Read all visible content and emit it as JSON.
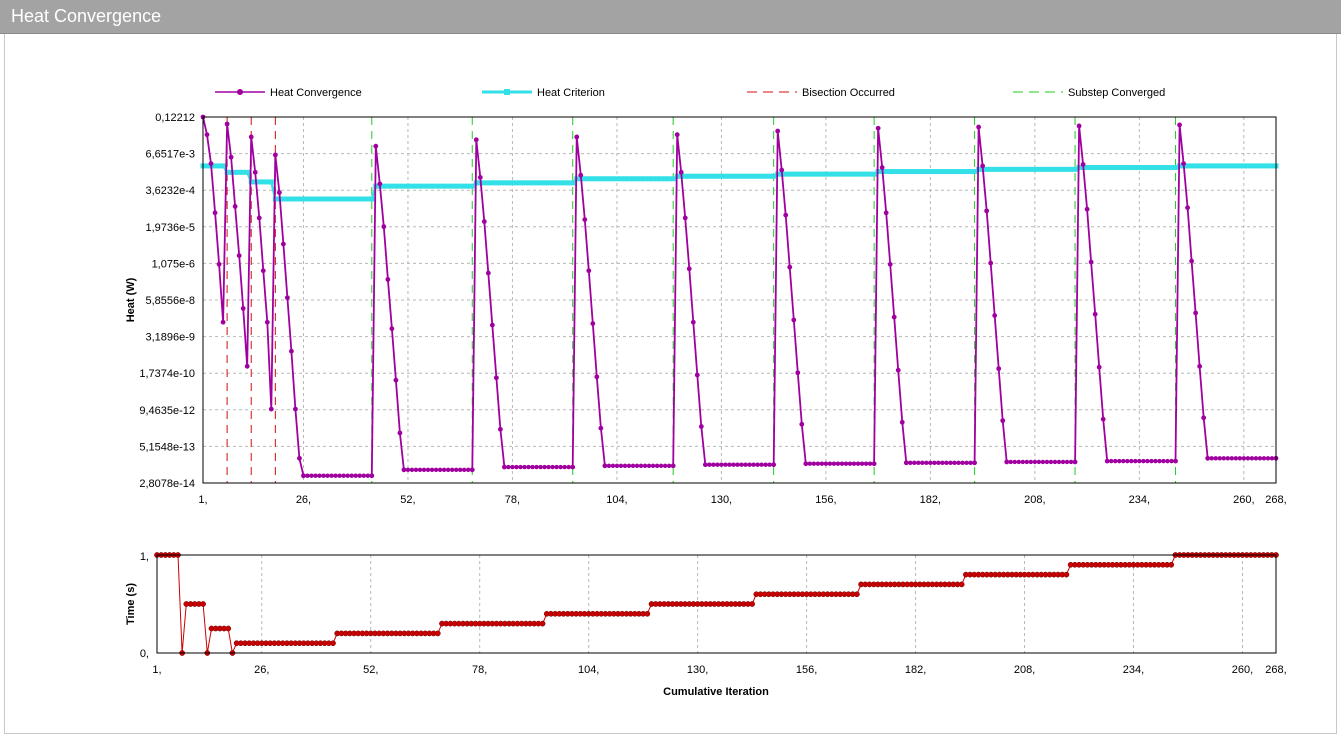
{
  "window": {
    "title": "Heat Convergence"
  },
  "chart_data": [
    {
      "type": "line",
      "xlabel": "",
      "ylabel": "Heat (W)",
      "log_scale_y": true,
      "ylim": [
        2.8078e-14,
        0.12212
      ],
      "xlim": [
        1,
        268
      ],
      "grid": true,
      "legend_position": "top",
      "x_ticks": [
        "1,",
        "26,",
        "52,",
        "78,",
        "104,",
        "130,",
        "156,",
        "182,",
        "208,",
        "234,",
        "260,",
        "268,"
      ],
      "y_ticks": [
        "0,12212",
        "6,6517e-3",
        "3,6232e-4",
        "1,9736e-5",
        "1,075e-6",
        "5,8556e-8",
        "3,1896e-9",
        "1,7374e-10",
        "9,4635e-12",
        "5,1548e-13",
        "2,8078e-14"
      ],
      "legend": [
        {
          "name": "Heat Convergence",
          "color": "#a000a0"
        },
        {
          "name": "Heat Criterion",
          "color": "#33e0e8"
        },
        {
          "name": "Bisection Occurred",
          "color": "#d01010"
        },
        {
          "name": "Substep Converged",
          "color": "#22cc22"
        }
      ],
      "bisection_x": [
        7,
        13,
        19
      ],
      "substep_x": [
        43,
        68,
        93,
        118,
        143,
        168,
        193,
        218,
        243
      ],
      "series": [
        {
          "name": "Heat Convergence",
          "color": "#a000a0",
          "points": [
            [
              1,
              0.12212
            ],
            [
              2,
              0.03
            ],
            [
              3,
              0.003
            ],
            [
              4,
              6e-05
            ],
            [
              5,
              1e-06
            ],
            [
              6,
              1e-08
            ],
            [
              7,
              0.07
            ],
            [
              8,
              0.005
            ],
            [
              9,
              0.0001
            ],
            [
              10,
              2e-06
            ],
            [
              11,
              3e-08
            ],
            [
              12,
              3e-10
            ],
            [
              13,
              0.025
            ],
            [
              14,
              0.0015
            ],
            [
              15,
              4e-05
            ],
            [
              16,
              6e-07
            ],
            [
              17,
              1e-08
            ],
            [
              18,
              1e-11
            ],
            [
              19,
              0.006
            ],
            [
              20,
              0.0003
            ],
            [
              21,
              5e-06
            ],
            [
              22,
              7e-08
            ],
            [
              23,
              1e-09
            ],
            [
              24,
              1e-11
            ],
            [
              25,
              2e-13
            ],
            [
              26,
              5e-14
            ],
            [
              43,
              5e-14
            ],
            [
              44,
              0.012
            ],
            [
              45,
              0.0006
            ],
            [
              46,
              2e-05
            ],
            [
              47,
              3e-07
            ],
            [
              48,
              6e-09
            ],
            [
              49,
              1e-10
            ],
            [
              50,
              1.5e-12
            ],
            [
              51,
              8e-14
            ],
            [
              68,
              8e-14
            ],
            [
              69,
              0.02
            ],
            [
              70,
              0.001
            ],
            [
              71,
              3e-05
            ],
            [
              72,
              5e-07
            ],
            [
              73,
              8e-09
            ],
            [
              74,
              1.2e-10
            ],
            [
              75,
              2e-12
            ],
            [
              76,
              1e-13
            ],
            [
              93,
              1e-13
            ],
            [
              94,
              0.025
            ],
            [
              95,
              0.0012
            ],
            [
              96,
              3.5e-05
            ],
            [
              97,
              6e-07
            ],
            [
              98,
              9e-09
            ],
            [
              99,
              1.3e-10
            ],
            [
              100,
              2.2e-12
            ],
            [
              101,
              1.1e-13
            ],
            [
              118,
              1.1e-13
            ],
            [
              119,
              0.03
            ],
            [
              120,
              0.0015
            ],
            [
              121,
              4e-05
            ],
            [
              122,
              7e-07
            ],
            [
              123,
              1e-08
            ],
            [
              124,
              1.5e-10
            ],
            [
              125,
              2.5e-12
            ],
            [
              126,
              1.2e-13
            ],
            [
              143,
              1.2e-13
            ],
            [
              144,
              0.04
            ],
            [
              145,
              0.0018
            ],
            [
              146,
              5e-05
            ],
            [
              147,
              8e-07
            ],
            [
              148,
              1.2e-08
            ],
            [
              149,
              1.8e-10
            ],
            [
              150,
              3e-12
            ],
            [
              151,
              1.3e-13
            ],
            [
              168,
              1.3e-13
            ],
            [
              169,
              0.05
            ],
            [
              170,
              0.0022
            ],
            [
              171,
              6e-05
            ],
            [
              172,
              1e-06
            ],
            [
              173,
              1.5e-08
            ],
            [
              174,
              2.2e-10
            ],
            [
              175,
              3.5e-12
            ],
            [
              176,
              1.4e-13
            ],
            [
              193,
              1.4e-13
            ],
            [
              194,
              0.055
            ],
            [
              195,
              0.0025
            ],
            [
              196,
              7e-05
            ],
            [
              197,
              1.1e-06
            ],
            [
              198,
              1.7e-08
            ],
            [
              199,
              2.5e-10
            ],
            [
              200,
              4e-12
            ],
            [
              201,
              1.5e-13
            ],
            [
              218,
              1.5e-13
            ],
            [
              219,
              0.06
            ],
            [
              220,
              0.0028
            ],
            [
              221,
              8e-05
            ],
            [
              222,
              1.2e-06
            ],
            [
              223,
              1.9e-08
            ],
            [
              224,
              2.8e-10
            ],
            [
              225,
              4.5e-12
            ],
            [
              226,
              1.6e-13
            ],
            [
              243,
              1.6e-13
            ],
            [
              244,
              0.065
            ],
            [
              245,
              0.003
            ],
            [
              246,
              9e-05
            ],
            [
              247,
              1.3e-06
            ],
            [
              248,
              2.1e-08
            ],
            [
              249,
              3e-10
            ],
            [
              250,
              5e-12
            ],
            [
              251,
              2e-13
            ],
            [
              268,
              2e-13
            ]
          ]
        },
        {
          "name": "Heat Criterion",
          "color": "#33e0e8",
          "points": [
            [
              1,
              0.0025
            ],
            [
              6,
              0.0025
            ],
            [
              7,
              0.0015
            ],
            [
              12,
              0.0015
            ],
            [
              13,
              0.0007
            ],
            [
              18,
              0.0007
            ],
            [
              19,
              0.00018
            ],
            [
              43,
              0.00018
            ],
            [
              44,
              0.0005
            ],
            [
              68,
              0.0005
            ],
            [
              69,
              0.00065
            ],
            [
              93,
              0.00065
            ],
            [
              94,
              0.0009
            ],
            [
              118,
              0.0009
            ],
            [
              119,
              0.0011
            ],
            [
              143,
              0.0011
            ],
            [
              144,
              0.0013
            ],
            [
              168,
              0.0013
            ],
            [
              169,
              0.0016
            ],
            [
              193,
              0.0016
            ],
            [
              194,
              0.0019
            ],
            [
              218,
              0.0019
            ],
            [
              219,
              0.0022
            ],
            [
              243,
              0.0022
            ],
            [
              244,
              0.0025
            ],
            [
              268,
              0.0025
            ]
          ]
        }
      ]
    },
    {
      "type": "line",
      "xlabel": "Cumulative Iteration",
      "ylabel": "Time (s)",
      "ylim": [
        0,
        1
      ],
      "xlim": [
        1,
        268
      ],
      "grid": true,
      "x_ticks": [
        "1,",
        "26,",
        "52,",
        "78,",
        "104,",
        "130,",
        "156,",
        "182,",
        "208,",
        "234,",
        "260,",
        "268,"
      ],
      "y_ticks": [
        "1,",
        "0,"
      ],
      "series": [
        {
          "name": "Time",
          "color": "#cc0000",
          "points": [
            [
              1,
              1
            ],
            [
              6,
              1
            ],
            [
              7,
              0
            ],
            [
              8,
              0.5
            ],
            [
              12,
              0.5
            ],
            [
              13,
              0
            ],
            [
              14,
              0.25
            ],
            [
              18,
              0.25
            ],
            [
              19,
              0
            ],
            [
              20,
              0.1
            ],
            [
              43,
              0.1
            ],
            [
              44,
              0.2
            ],
            [
              68,
              0.2
            ],
            [
              69,
              0.3
            ],
            [
              93,
              0.3
            ],
            [
              94,
              0.4
            ],
            [
              118,
              0.4
            ],
            [
              119,
              0.5
            ],
            [
              143,
              0.5
            ],
            [
              144,
              0.6
            ],
            [
              168,
              0.6
            ],
            [
              169,
              0.7
            ],
            [
              193,
              0.7
            ],
            [
              194,
              0.8
            ],
            [
              218,
              0.8
            ],
            [
              219,
              0.9
            ],
            [
              243,
              0.9
            ],
            [
              244,
              1
            ],
            [
              268,
              1
            ]
          ]
        }
      ]
    }
  ]
}
